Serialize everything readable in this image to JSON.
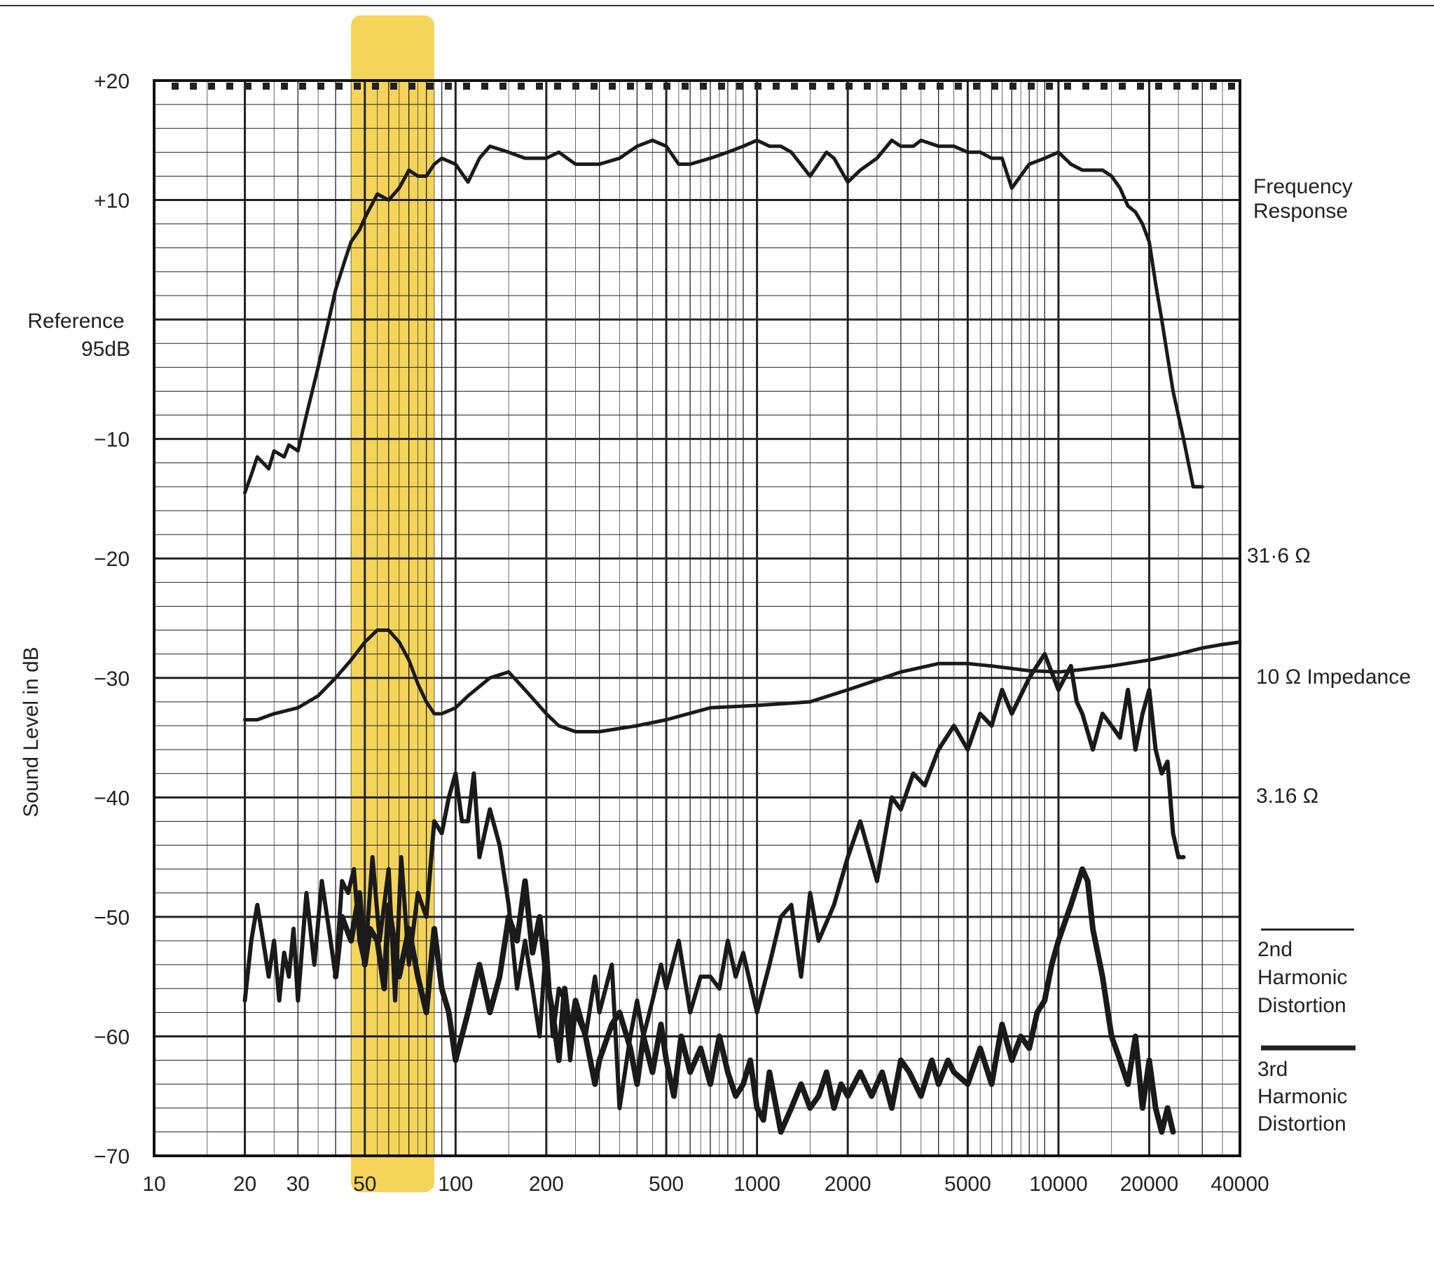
{
  "chart_data": {
    "type": "line",
    "x_scale": "log",
    "xlim": [
      10,
      40000
    ],
    "ylim": [
      -70,
      20
    ],
    "x_ticks": [
      10,
      20,
      30,
      50,
      100,
      200,
      500,
      1000,
      2000,
      5000,
      10000,
      20000,
      40000
    ],
    "x_tick_labels": [
      "10",
      "20",
      "30",
      "50",
      "100",
      "200",
      "500",
      "1000",
      "2000",
      "5000",
      "10000",
      "20000",
      "40000"
    ],
    "y_ticks": [
      20,
      10,
      0,
      -10,
      -20,
      -30,
      -40,
      -50,
      -60,
      -70
    ],
    "y_tick_labels": [
      "+20",
      "+10",
      "",
      "−10",
      "−20",
      "−30",
      "−40",
      "−50",
      "−60",
      "−70"
    ],
    "ylabel": "Sound Level in dB",
    "reference_label": [
      "Reference",
      "95dB"
    ],
    "grid": true,
    "highlight": {
      "x_range": [
        45,
        85
      ],
      "color": "#f0c419"
    },
    "right_labels": {
      "frequency_response": [
        "Frequency",
        "Response"
      ],
      "impedance_31": "31·6 Ω",
      "impedance_10": "10 Ω Impedance",
      "impedance_3": "3.16 Ω",
      "second_harmonic": [
        "2nd",
        "Harmonic",
        "Distortion"
      ],
      "third_harmonic": [
        "3rd",
        "Harmonic",
        "Distortion"
      ]
    },
    "series": [
      {
        "key": "frequency_response",
        "x": [
          20,
          21,
          22,
          24,
          25,
          27,
          28,
          30,
          32,
          35,
          38,
          40,
          43,
          45,
          48,
          50,
          55,
          60,
          65,
          70,
          75,
          80,
          85,
          90,
          100,
          110,
          120,
          130,
          150,
          170,
          200,
          220,
          250,
          300,
          350,
          400,
          450,
          500,
          550,
          600,
          700,
          800,
          900,
          1000,
          1100,
          1200,
          1300,
          1500,
          1700,
          1800,
          2000,
          2200,
          2500,
          2800,
          3000,
          3300,
          3500,
          4000,
          4500,
          5000,
          5500,
          6000,
          6500,
          7000,
          8000,
          9000,
          10000,
          11000,
          12000,
          13000,
          14000,
          15000,
          16000,
          17000,
          18000,
          19000,
          20000,
          21000,
          22000,
          24000,
          26000,
          28000,
          30000
        ],
        "values": [
          -14.5,
          -13,
          -11.5,
          -12.5,
          -11,
          -11.5,
          -10.5,
          -11,
          -8,
          -4,
          0,
          2.5,
          5,
          6.5,
          7.5,
          8.5,
          10.5,
          10,
          11,
          12.5,
          12,
          12,
          13,
          13.5,
          13,
          11.5,
          13.5,
          14.5,
          14,
          13.5,
          13.5,
          14,
          13,
          13,
          13.5,
          14.5,
          15,
          14.5,
          13,
          13,
          13.5,
          14,
          14.5,
          15,
          14.5,
          14.5,
          14,
          12,
          14,
          13.5,
          11.5,
          12.5,
          13.5,
          15,
          14.5,
          14.5,
          15,
          14.5,
          14.5,
          14,
          14,
          13.5,
          13.5,
          11,
          13,
          13.5,
          14,
          13,
          12.5,
          12.5,
          12.5,
          12,
          11,
          9.5,
          9,
          8,
          6.5,
          3,
          0,
          -6,
          -10,
          -14,
          -14
        ]
      },
      {
        "key": "impedance",
        "x": [
          20,
          22,
          25,
          30,
          35,
          40,
          45,
          50,
          55,
          60,
          65,
          70,
          75,
          80,
          85,
          90,
          100,
          110,
          130,
          150,
          170,
          200,
          220,
          250,
          300,
          400,
          500,
          700,
          1000,
          1500,
          2000,
          3000,
          4000,
          5000,
          6000,
          8000,
          10000,
          12000,
          15000,
          20000,
          25000,
          30000,
          35000,
          40000
        ],
        "values": [
          -33.5,
          -33.5,
          -33,
          -32.5,
          -31.5,
          -30,
          -28.5,
          -27,
          -26,
          -26,
          -27,
          -28.5,
          -30.5,
          -32,
          -33,
          -33,
          -32.5,
          -31.5,
          -30,
          -29.5,
          -31,
          -33,
          -34,
          -34.5,
          -34.5,
          -34,
          -33.5,
          -32.5,
          -32.3,
          -32,
          -31,
          -29.5,
          -28.8,
          -28.8,
          -29,
          -29.4,
          -29.5,
          -29.3,
          -29,
          -28.5,
          -28,
          -27.5,
          -27.2,
          -27
        ]
      },
      {
        "key": "second_harmonic",
        "x": [
          20,
          21,
          22,
          23,
          24,
          25,
          26,
          27,
          28,
          29,
          30,
          32,
          34,
          36,
          38,
          40,
          42,
          44,
          46,
          48,
          50,
          53,
          56,
          60,
          63,
          66,
          70,
          75,
          80,
          85,
          90,
          95,
          100,
          105,
          110,
          115,
          120,
          130,
          140,
          150,
          160,
          170,
          180,
          190,
          200,
          210,
          220,
          230,
          240,
          250,
          270,
          290,
          300,
          330,
          350,
          380,
          400,
          420,
          450,
          480,
          500,
          550,
          600,
          650,
          700,
          750,
          800,
          850,
          900,
          1000,
          1100,
          1200,
          1300,
          1400,
          1500,
          1600,
          1800,
          2000,
          2200,
          2500,
          2800,
          3000,
          3300,
          3600,
          4000,
          4500,
          5000,
          5500,
          6000,
          6500,
          7000,
          8000,
          9000,
          10000,
          11000,
          11500,
          12000,
          13000,
          14000,
          15000,
          16000,
          17000,
          18000,
          19000,
          20000,
          21000,
          22000,
          23000,
          24000,
          25000,
          26000
        ],
        "values": [
          -57,
          -52,
          -49,
          -52,
          -55,
          -52,
          -57,
          -53,
          -55,
          -51,
          -57,
          -48,
          -54,
          -47,
          -51,
          -55,
          -47,
          -48,
          -46,
          -52,
          -54,
          -45,
          -52,
          -46,
          -57,
          -45,
          -54,
          -48,
          -50,
          -42,
          -43,
          -40,
          -38,
          -42,
          -42,
          -38,
          -45,
          -41,
          -44,
          -49,
          -56,
          -52,
          -56,
          -60,
          -52,
          -60,
          -56,
          -57,
          -62,
          -58,
          -60,
          -55,
          -58,
          -54,
          -66,
          -60,
          -57,
          -60,
          -57,
          -54,
          -56,
          -52,
          -58,
          -55,
          -55,
          -56,
          -52,
          -55,
          -53,
          -58,
          -54,
          -50,
          -49,
          -55,
          -48,
          -52,
          -49,
          -45,
          -42,
          -47,
          -40,
          -41,
          -38,
          -39,
          -36,
          -34,
          -36,
          -33,
          -34,
          -31,
          -33,
          -30,
          -28,
          -31,
          -29,
          -32,
          -33,
          -36,
          -33,
          -34,
          -35,
          -31,
          -36,
          -33,
          -31,
          -36,
          -38,
          -37,
          -43,
          -45,
          -45
        ]
      },
      {
        "key": "third_harmonic",
        "x": [
          40,
          42,
          45,
          48,
          50,
          52,
          55,
          58,
          60,
          65,
          70,
          75,
          80,
          85,
          90,
          95,
          100,
          110,
          120,
          130,
          140,
          150,
          160,
          170,
          180,
          190,
          200,
          210,
          220,
          230,
          240,
          250,
          270,
          290,
          300,
          330,
          350,
          380,
          400,
          420,
          450,
          480,
          500,
          530,
          560,
          600,
          650,
          700,
          750,
          800,
          850,
          900,
          950,
          1000,
          1050,
          1100,
          1200,
          1300,
          1400,
          1500,
          1600,
          1700,
          1800,
          1900,
          2000,
          2200,
          2400,
          2600,
          2800,
          3000,
          3200,
          3500,
          3800,
          4000,
          4300,
          4500,
          5000,
          5500,
          6000,
          6500,
          7000,
          7500,
          8000,
          8500,
          9000,
          9500,
          10000,
          11000,
          12000,
          12500,
          13000,
          14000,
          15000,
          16000,
          17000,
          18000,
          19000,
          20000,
          21000,
          22000,
          23000,
          24000
        ],
        "values": [
          -55,
          -50,
          -52,
          -48,
          -54,
          -51,
          -52,
          -56,
          -49,
          -55,
          -51,
          -55,
          -58,
          -51,
          -56,
          -58,
          -62,
          -58,
          -54,
          -58,
          -55,
          -50,
          -52,
          -47,
          -53,
          -50,
          -55,
          -58,
          -62,
          -56,
          -60,
          -57,
          -60,
          -64,
          -62,
          -59,
          -58,
          -61,
          -64,
          -60,
          -63,
          -59,
          -62,
          -65,
          -60,
          -63,
          -61,
          -64,
          -60,
          -63,
          -65,
          -64,
          -62,
          -66,
          -67,
          -63,
          -68,
          -66,
          -64,
          -66,
          -65,
          -63,
          -66,
          -64,
          -65,
          -63,
          -65,
          -63,
          -66,
          -62,
          -63,
          -65,
          -62,
          -64,
          -62,
          -63,
          -64,
          -61,
          -64,
          -59,
          -62,
          -60,
          -61,
          -58,
          -57,
          -54,
          -52,
          -49,
          -46,
          -47,
          -51,
          -55,
          -60,
          -62,
          -64,
          -60,
          -66,
          -62,
          -66,
          -68,
          -66,
          -68
        ]
      }
    ]
  }
}
